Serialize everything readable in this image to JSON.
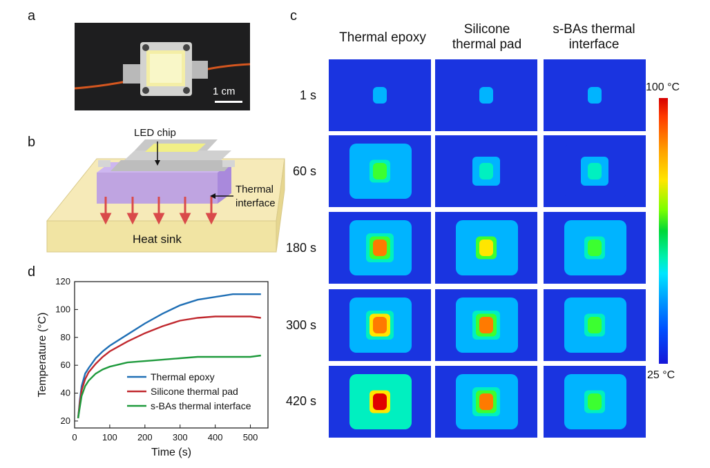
{
  "panels": {
    "a": {
      "letter": "a",
      "scale_bar": "1 cm"
    },
    "b": {
      "letter": "b",
      "led_chip_label": "LED chip",
      "thermal_interface_label_1": "Thermal",
      "thermal_interface_label_2": "interface",
      "heat_sink_label": "Heat sink"
    },
    "c": {
      "letter": "c",
      "columns": [
        {
          "line1": "Thermal epoxy",
          "line2": ""
        },
        {
          "line1": "Silicone",
          "line2": "thermal pad"
        },
        {
          "line1": "s-BAs thermal",
          "line2": "interface"
        }
      ],
      "rows": [
        "1 s",
        "60 s",
        "180 s",
        "300 s",
        "420 s"
      ],
      "colorbar": {
        "max_label": "100 °C",
        "min_label": "25 °C"
      }
    },
    "d": {
      "letter": "d"
    }
  },
  "chart_data": {
    "type": "line",
    "xlabel": "Time (s)",
    "ylabel": "Temperature (°C)",
    "xlim": [
      0,
      550
    ],
    "ylim": [
      15,
      120
    ],
    "xticks": [
      0,
      100,
      200,
      300,
      400,
      500
    ],
    "yticks": [
      20,
      40,
      60,
      80,
      100,
      120
    ],
    "legend_position": "bottom-right",
    "series": [
      {
        "name": "Thermal epoxy",
        "color": "#1f6fb5",
        "x": [
          10,
          15,
          20,
          30,
          40,
          60,
          80,
          100,
          150,
          200,
          250,
          300,
          350,
          400,
          450,
          500,
          530
        ],
        "y": [
          22,
          35,
          45,
          54,
          58,
          65,
          70,
          74,
          82,
          90,
          97,
          103,
          107,
          109,
          111,
          111,
          111
        ]
      },
      {
        "name": "Silicone thermal pad",
        "color": "#c0282e",
        "x": [
          10,
          15,
          20,
          30,
          40,
          60,
          80,
          100,
          150,
          200,
          250,
          300,
          350,
          400,
          450,
          500,
          530
        ],
        "y": [
          22,
          33,
          42,
          50,
          55,
          61,
          66,
          70,
          77,
          83,
          88,
          92,
          94,
          95,
          95,
          95,
          94
        ]
      },
      {
        "name": "s-BAs thermal interface",
        "color": "#1e9a3c",
        "x": [
          10,
          15,
          20,
          30,
          40,
          60,
          80,
          100,
          150,
          200,
          250,
          300,
          350,
          400,
          450,
          500,
          530
        ],
        "y": [
          22,
          30,
          38,
          45,
          49,
          54,
          57,
          59,
          62,
          63,
          64,
          65,
          66,
          66,
          66,
          66,
          67
        ]
      }
    ]
  }
}
